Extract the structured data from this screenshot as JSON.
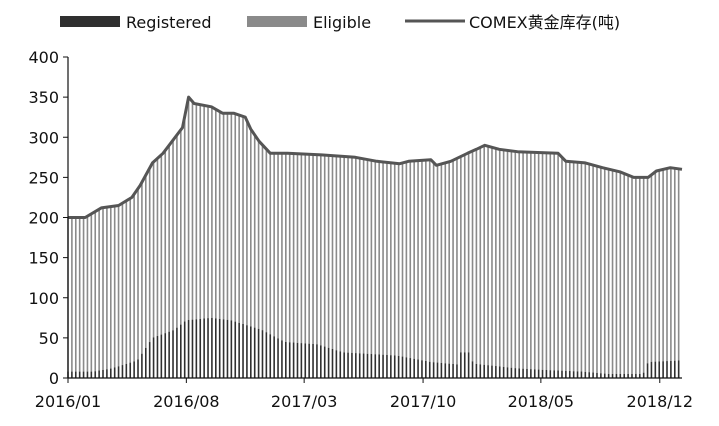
{
  "chart_data": {
    "type": "bar",
    "title": "",
    "xlabel": "",
    "ylabel": "",
    "ylim": [
      0,
      400
    ],
    "yticks": [
      0,
      50,
      100,
      150,
      200,
      250,
      300,
      350,
      400
    ],
    "xtick_labels": [
      "2016/01",
      "2016/08",
      "2017/03",
      "2017/10",
      "2018/05",
      "2018/12"
    ],
    "x_start": "2016-01-01",
    "x_end": "2019-01-10",
    "legend": {
      "placement": "top",
      "entries": [
        {
          "name": "Registered",
          "mark": "bar",
          "color": "#2f2f2f"
        },
        {
          "name": "Eligible",
          "mark": "bar",
          "color": "#8a8a8a"
        },
        {
          "name": "COMEX黄金库存(吨)",
          "mark": "line",
          "color": "#555555"
        }
      ]
    },
    "grid": false,
    "stacked": true,
    "colors": {
      "registered": "#2f2f2f",
      "eligible": "#8a8a8a",
      "total_line": "#555555"
    },
    "registered_points": [
      [
        "2016-01-01",
        8
      ],
      [
        "2016-02-15",
        8
      ],
      [
        "2016-03-20",
        12
      ],
      [
        "2016-05-05",
        22
      ],
      [
        "2016-06-01",
        50
      ],
      [
        "2016-07-10",
        60
      ],
      [
        "2016-08-01",
        72
      ],
      [
        "2016-09-15",
        75
      ],
      [
        "2016-10-20",
        72
      ],
      [
        "2016-12-15",
        60
      ],
      [
        "2017-01-25",
        45
      ],
      [
        "2017-03-25",
        42
      ],
      [
        "2017-05-10",
        32
      ],
      [
        "2017-08-15",
        28
      ],
      [
        "2017-10-15",
        20
      ],
      [
        "2017-12-01",
        17
      ],
      [
        "2017-12-05",
        32
      ],
      [
        "2017-12-25",
        32
      ],
      [
        "2017-12-30",
        18
      ],
      [
        "2018-03-20",
        12
      ],
      [
        "2018-05-10",
        10
      ],
      [
        "2018-07-15",
        8
      ],
      [
        "2018-09-01",
        5
      ],
      [
        "2018-11-01",
        5
      ],
      [
        "2018-11-10",
        20
      ],
      [
        "2019-01-10",
        22
      ]
    ],
    "total_points": [
      [
        "2016-01-01",
        200
      ],
      [
        "2016-02-01",
        200
      ],
      [
        "2016-03-01",
        212
      ],
      [
        "2016-04-01",
        215
      ],
      [
        "2016-04-25",
        225
      ],
      [
        "2016-05-10",
        240
      ],
      [
        "2016-06-01",
        268
      ],
      [
        "2016-06-20",
        280
      ],
      [
        "2016-07-01",
        290
      ],
      [
        "2016-07-25",
        312
      ],
      [
        "2016-08-05",
        350
      ],
      [
        "2016-08-15",
        342
      ],
      [
        "2016-09-15",
        338
      ],
      [
        "2016-10-05",
        330
      ],
      [
        "2016-10-25",
        330
      ],
      [
        "2016-11-15",
        325
      ],
      [
        "2016-11-25",
        310
      ],
      [
        "2016-12-10",
        295
      ],
      [
        "2016-12-30",
        280
      ],
      [
        "2017-01-30",
        280
      ],
      [
        "2017-04-01",
        278
      ],
      [
        "2017-06-01",
        275
      ],
      [
        "2017-07-10",
        270
      ],
      [
        "2017-08-20",
        267
      ],
      [
        "2017-09-05",
        270
      ],
      [
        "2017-10-15",
        272
      ],
      [
        "2017-10-25",
        265
      ],
      [
        "2017-11-20",
        270
      ],
      [
        "2017-12-20",
        280
      ],
      [
        "2018-01-05",
        285
      ],
      [
        "2018-01-20",
        290
      ],
      [
        "2018-02-15",
        285
      ],
      [
        "2018-03-20",
        282
      ],
      [
        "2018-06-01",
        280
      ],
      [
        "2018-06-15",
        270
      ],
      [
        "2018-07-20",
        268
      ],
      [
        "2018-08-20",
        262
      ],
      [
        "2018-09-20",
        257
      ],
      [
        "2018-10-15",
        250
      ],
      [
        "2018-11-10",
        250
      ],
      [
        "2018-11-25",
        258
      ],
      [
        "2018-12-20",
        262
      ],
      [
        "2019-01-10",
        260
      ]
    ]
  }
}
